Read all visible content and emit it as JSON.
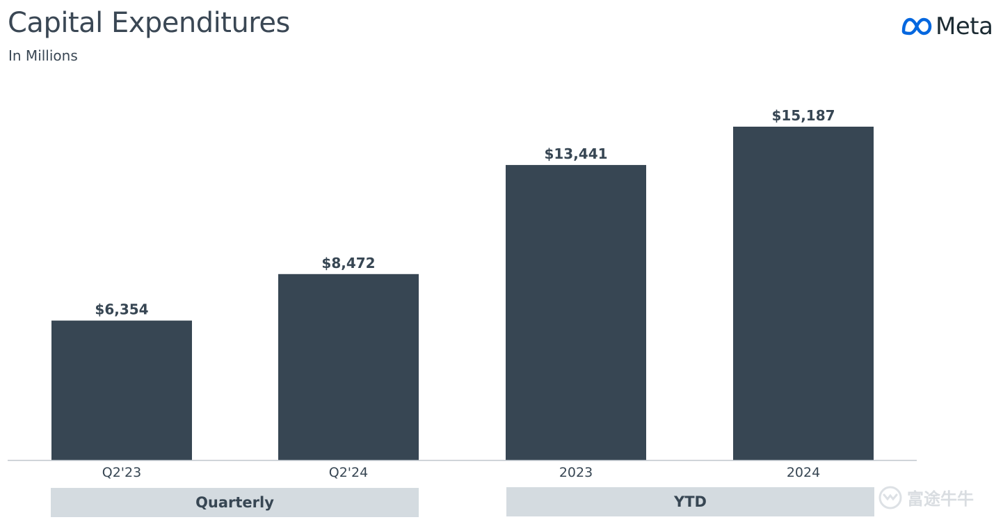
{
  "header": {
    "title": "Capital Expenditures",
    "subtitle": "In Millions"
  },
  "logo": {
    "text": "Meta",
    "icon": "meta-infinity-icon",
    "colors": [
      "#0064e0",
      "#0082fb"
    ]
  },
  "groups": {
    "quarterly": "Quarterly",
    "ytd": "YTD"
  },
  "watermark": {
    "text": "富途牛牛",
    "icon": "futu-bull-icon"
  },
  "colors": {
    "bar": "#374653",
    "axis": "#bfc6cc",
    "group_box": "#d4dbe0"
  },
  "chart_data": {
    "type": "bar",
    "title": "Capital Expenditures",
    "subtitle": "In Millions",
    "categories": [
      "Q2'23",
      "Q2'24",
      "2023",
      "2024"
    ],
    "values": [
      6354,
      8472,
      13441,
      15187
    ],
    "data_labels": [
      "$6,354",
      "$8,472",
      "$13,441",
      "$15,187"
    ],
    "category_groups": [
      {
        "label": "Quarterly",
        "categories": [
          "Q2'23",
          "Q2'24"
        ]
      },
      {
        "label": "YTD",
        "categories": [
          "2023",
          "2024"
        ]
      }
    ],
    "xlabel": "",
    "ylabel": "",
    "ylim": [
      0,
      15187
    ],
    "grid": false,
    "legend": "none"
  }
}
